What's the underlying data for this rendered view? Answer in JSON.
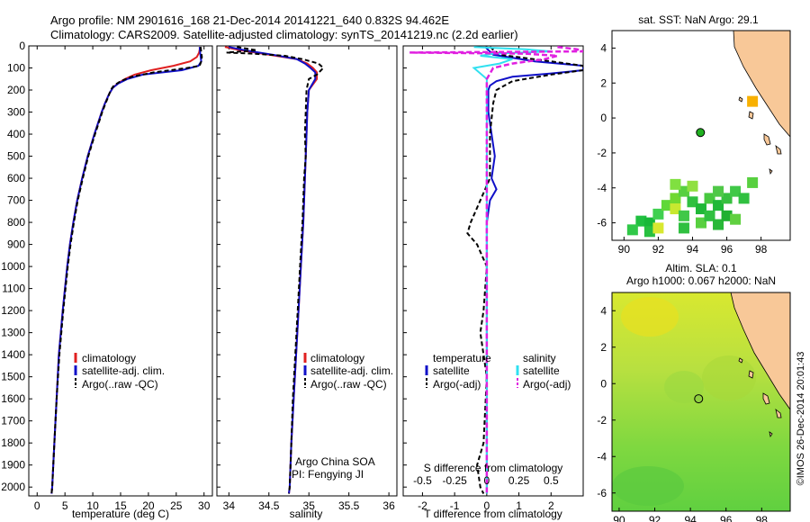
{
  "header": {
    "line1": "Argo profile: NM 2901616_168 21-Dec-2014 20141221_640 0.832S 94.462E",
    "line2": "Climatology: CARS2009. Satellite-adjusted climatology: synTS_20141219.nc (2.2d earlier)"
  },
  "side_label": "©IMOS 26-Dec-2014 20:01:43",
  "colors": {
    "climatology": "#e02020",
    "satellite": "#1010c8",
    "argo": "#000000",
    "sal_satellite": "#30e0f0",
    "sal_argo": "#e020e0",
    "land": "#f8c898",
    "sea_bg": "#ffffff"
  },
  "chart_data": [
    {
      "type": "line",
      "id": "temperature",
      "xlabel": "temperature (deg C)",
      "xlim": [
        -1.5,
        31.5
      ],
      "xticks": [
        0,
        5,
        10,
        15,
        20,
        25,
        30
      ],
      "ylim": [
        2040,
        0
      ],
      "yticks": [
        0,
        100,
        200,
        300,
        400,
        500,
        600,
        700,
        800,
        900,
        1000,
        1100,
        1200,
        1300,
        1400,
        1500,
        1600,
        1700,
        1800,
        1900,
        2000
      ],
      "legend": [
        "climatology",
        "satellite-adj. clim.",
        "Argo(..raw -QC)"
      ],
      "series": [
        {
          "name": "climatology",
          "depth": [
            5,
            30,
            50,
            70,
            90,
            110,
            130,
            150,
            170,
            190,
            220,
            260,
            300,
            400,
            500,
            600,
            700,
            800,
            900,
            1000,
            1200,
            1400,
            1600,
            1800,
            2000,
            2030
          ],
          "values": [
            29.3,
            29.1,
            28.7,
            27.5,
            24.5,
            20.5,
            17.5,
            15.8,
            14.5,
            13.6,
            12.9,
            12.2,
            11.6,
            10.3,
            9.1,
            8.1,
            7.2,
            6.5,
            5.9,
            5.4,
            4.6,
            3.9,
            3.5,
            3.1,
            2.7,
            2.6
          ]
        },
        {
          "name": "satellite-adj. clim.",
          "depth": [
            5,
            30,
            50,
            70,
            90,
            110,
            130,
            150,
            170,
            190,
            220,
            260,
            300,
            400,
            500,
            600,
            700,
            800,
            900,
            1000,
            1200,
            1400,
            1600,
            1800,
            2000,
            2030
          ],
          "values": [
            29.2,
            29.3,
            29.4,
            29.5,
            29.0,
            26.0,
            19.0,
            16.2,
            14.6,
            13.6,
            12.9,
            12.2,
            11.6,
            10.3,
            9.1,
            8.1,
            7.2,
            6.5,
            5.9,
            5.4,
            4.6,
            3.9,
            3.5,
            3.1,
            2.7,
            2.6
          ]
        },
        {
          "name": "Argo(..raw -QC)",
          "depth": [
            5,
            30,
            50,
            70,
            90,
            100,
            120,
            140,
            160,
            180,
            200,
            230,
            260,
            300,
            400,
            500,
            600,
            700,
            800,
            900,
            1000,
            1200,
            1400,
            1600,
            1800,
            2000,
            2030
          ],
          "values": [
            29.4,
            29.5,
            29.6,
            29.5,
            29.2,
            27.0,
            21.0,
            17.0,
            15.0,
            13.8,
            13.2,
            12.8,
            12.3,
            11.7,
            10.4,
            9.2,
            8.2,
            7.3,
            6.6,
            6.0,
            5.5,
            4.7,
            4.0,
            3.5,
            3.1,
            2.7,
            2.6
          ]
        }
      ]
    },
    {
      "type": "line",
      "id": "salinity",
      "xlabel": "salinity",
      "xlim": [
        33.85,
        36.1
      ],
      "xticks": [
        34,
        34.5,
        35,
        35.5,
        36
      ],
      "ylim": [
        2040,
        0
      ],
      "legend": [
        "climatology",
        "satellite-adj. clim.",
        "Argo(..raw -QC)"
      ],
      "annotations": [
        "Argo China SOA",
        "PI: Fengying JI"
      ],
      "series": [
        {
          "name": "climatology",
          "depth": [
            5,
            20,
            40,
            60,
            80,
            100,
            120,
            150,
            200,
            300,
            400,
            500,
            600,
            700,
            800,
            1000,
            1200,
            1400,
            1600,
            1800,
            2000,
            2030
          ],
          "values": [
            33.95,
            34.15,
            34.5,
            34.85,
            34.98,
            35.05,
            35.1,
            35.1,
            35.0,
            34.98,
            34.97,
            34.96,
            34.95,
            34.94,
            34.93,
            34.9,
            34.87,
            34.84,
            34.81,
            34.78,
            34.76,
            34.75
          ]
        },
        {
          "name": "satellite-adj. clim.",
          "depth": [
            5,
            20,
            40,
            60,
            80,
            100,
            120,
            150,
            200,
            300,
            400,
            500,
            600,
            700,
            800,
            1000,
            1200,
            1400,
            1600,
            1800,
            2000,
            2030
          ],
          "values": [
            34.0,
            34.2,
            34.55,
            34.85,
            34.95,
            35.02,
            35.08,
            35.08,
            35.0,
            34.98,
            34.97,
            34.96,
            34.95,
            34.94,
            34.93,
            34.9,
            34.87,
            34.84,
            34.81,
            34.78,
            34.76,
            34.75
          ]
        },
        {
          "name": "Argo(..raw -QC)",
          "depth": [
            5,
            20,
            30,
            35,
            45,
            60,
            80,
            100,
            130,
            150,
            200,
            300,
            400,
            500,
            600,
            700,
            800,
            1000,
            1200,
            1400,
            1600,
            1800,
            2000,
            2030
          ],
          "values": [
            34.1,
            34.35,
            33.97,
            34.3,
            34.7,
            34.92,
            35.12,
            35.18,
            35.1,
            35.0,
            34.97,
            34.96,
            34.95,
            34.96,
            34.94,
            34.93,
            34.92,
            34.89,
            34.86,
            34.83,
            34.8,
            34.78,
            34.76,
            34.75
          ]
        }
      ]
    },
    {
      "type": "line",
      "id": "difference",
      "xlabel": "T difference from climatology",
      "xlabel_top": "S difference from climatology",
      "xlim": [
        -2.6,
        3.0
      ],
      "xticks": [
        -2,
        -1,
        0,
        1,
        2
      ],
      "xticks_s": [
        -0.5,
        -0.25,
        0,
        0.25,
        0.5
      ],
      "xtick_labels_s": [
        "-0.5",
        "-0.25",
        "0",
        "0.25",
        "0.5"
      ],
      "ylim": [
        2040,
        0
      ],
      "legend_left_title": "temperature",
      "legend_right_title": "salinity",
      "legend_left": [
        "satellite",
        "Argo(-adj)"
      ],
      "legend_right": [
        "satellite",
        "Argo(-adj)"
      ],
      "series": [
        {
          "name": "T satellite",
          "depth": [
            5,
            40,
            70,
            90,
            110,
            125,
            140,
            160,
            180,
            200,
            300,
            500,
            600,
            650,
            700,
            800,
            1000,
            1400,
            2000,
            2030
          ],
          "values": [
            -0.05,
            0.2,
            1.5,
            3.0,
            3.0,
            2.0,
            0.8,
            0.3,
            0.1,
            0.05,
            0.05,
            0.25,
            0.15,
            0.3,
            0.1,
            0.0,
            0.0,
            0.0,
            0.0,
            0.0
          ]
        },
        {
          "name": "T Argo(-adj)",
          "depth": [
            5,
            40,
            70,
            90,
            110,
            130,
            160,
            200,
            260,
            400,
            600,
            800,
            850,
            900,
            1000,
            1200,
            1300,
            1500,
            1800,
            1900,
            2000,
            2030
          ],
          "values": [
            0.1,
            0.4,
            2.0,
            3.0,
            3.0,
            2.0,
            0.8,
            0.3,
            0.2,
            0.1,
            0.1,
            -0.5,
            -0.6,
            -0.3,
            0.0,
            -0.1,
            -0.2,
            0.0,
            -0.1,
            -0.3,
            -0.2,
            -0.1
          ]
        },
        {
          "name": "S satellite",
          "depth": [
            5,
            15,
            25,
            35,
            45,
            60,
            80,
            100,
            150,
            200,
            400,
            800,
            1200,
            2030
          ],
          "values": [
            -0.1,
            0.3,
            0.5,
            0.05,
            -0.05,
            0.2,
            0.1,
            -0.1,
            0.0,
            0.0,
            0.0,
            0.0,
            0.0,
            0.0
          ]
        },
        {
          "name": "S Argo(-adj)",
          "depth": [
            5,
            15,
            25,
            30,
            35,
            45,
            60,
            80,
            100,
            150,
            200,
            400,
            800,
            1200,
            2030
          ],
          "values": [
            0.55,
            0.7,
            0.75,
            -0.6,
            0.3,
            0.55,
            0.45,
            0.2,
            0.05,
            0.0,
            0.0,
            0.0,
            0.0,
            0.0,
            0.0
          ]
        }
      ]
    },
    {
      "type": "heatmap",
      "id": "sst_map",
      "title": "sat. SST: NaN Argo: 29.1",
      "xlim": [
        89.3,
        99.7
      ],
      "ylim": [
        -7.0,
        5.0
      ],
      "xticks": [
        90,
        92,
        94,
        96,
        98
      ],
      "yticks": [
        -6,
        -4,
        -2,
        0,
        2,
        4
      ],
      "argo_point": [
        94.462,
        -0.832
      ],
      "pixels": [
        [
          91,
          -5.9,
          "#20c040"
        ],
        [
          91.5,
          -6.0,
          "#18b838"
        ],
        [
          90.5,
          -6.4,
          "#30c848"
        ],
        [
          91.5,
          -6.5,
          "#28c040"
        ],
        [
          92,
          -5.5,
          "#40d050"
        ],
        [
          92.5,
          -5.0,
          "#60d838"
        ],
        [
          93,
          -4.6,
          "#70d830"
        ],
        [
          93,
          -5.2,
          "#c8e830"
        ],
        [
          93.5,
          -4.2,
          "#58d040"
        ],
        [
          93.5,
          -5.6,
          "#40c848"
        ],
        [
          94,
          -4.8,
          "#30c040"
        ],
        [
          94.5,
          -5.2,
          "#20b838"
        ],
        [
          94.5,
          -6.0,
          "#58d040"
        ],
        [
          95,
          -4.6,
          "#48c840"
        ],
        [
          95,
          -5.6,
          "#30c040"
        ],
        [
          95.5,
          -5.0,
          "#20b838"
        ],
        [
          95.5,
          -6.1,
          "#28b838"
        ],
        [
          96,
          -4.6,
          "#38c040"
        ],
        [
          96,
          -5.6,
          "#20b030"
        ],
        [
          96.5,
          -4.2,
          "#40c848"
        ],
        [
          96.5,
          -5.8,
          "#60d040"
        ],
        [
          97,
          -4.6,
          "#30c040"
        ],
        [
          97.5,
          -3.7,
          "#58d040"
        ],
        [
          92,
          -6.3,
          "#d8e830"
        ],
        [
          93.5,
          -6.3,
          "#30c040"
        ],
        [
          94,
          -3.9,
          "#90e040"
        ],
        [
          95.5,
          -4.2,
          "#50c848"
        ],
        [
          93,
          -3.8,
          "#80e040"
        ],
        [
          97.5,
          0.95,
          "#f8b000"
        ]
      ]
    },
    {
      "type": "heatmap",
      "id": "sla_map",
      "title": "Altim. SLA: 0.1",
      "subtitle": "Argo h1000: 0.067 h2000: NaN",
      "xlim": [
        89.6,
        99.6
      ],
      "ylim": [
        -7.0,
        5.0
      ],
      "xticks": [
        90,
        92,
        94,
        96,
        98
      ],
      "yticks": [
        -6,
        -4,
        -2,
        0,
        2,
        4
      ],
      "argo_point": [
        94.462,
        -0.832
      ]
    }
  ]
}
